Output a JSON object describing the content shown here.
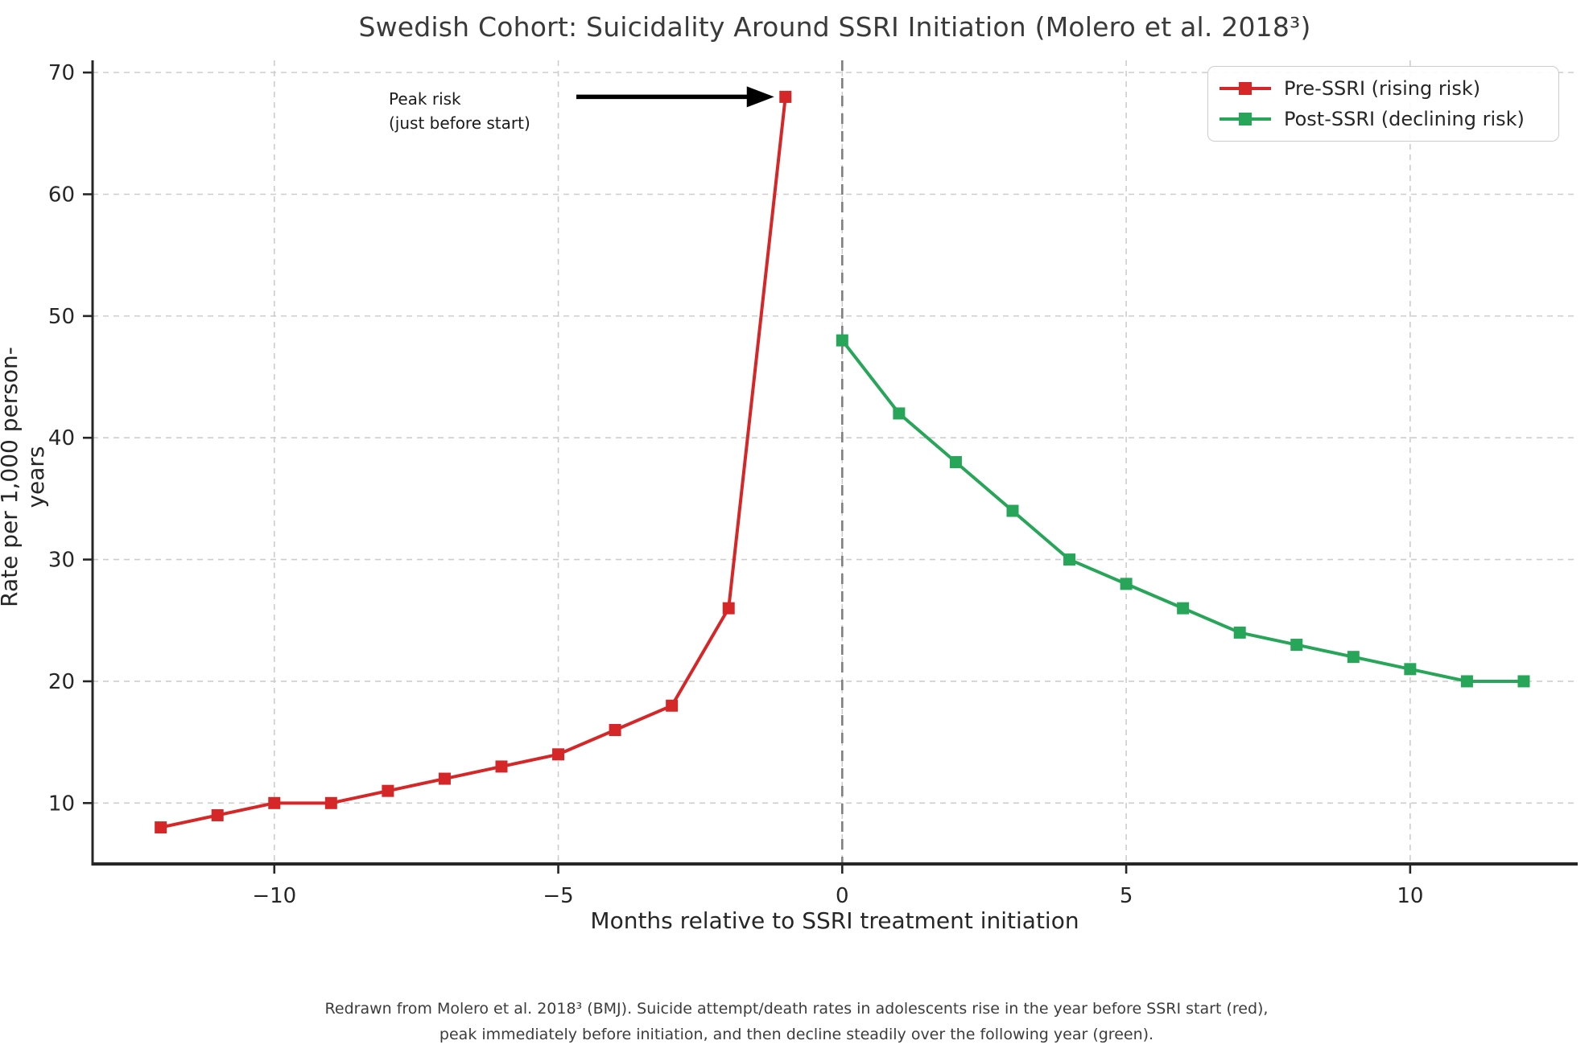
{
  "figure": {
    "title": "Swedish Cohort: Suicidality Around SSRI Initiation (Molero et al. 2018³)",
    "caption_line1": "Redrawn from Molero et al. 2018³ (BMJ). Suicide attempt/death rates in adolescents rise in the year before SSRI start (red),",
    "caption_line2": "peak immediately before initiation, and then decline steadily over the following year (green)."
  },
  "chart_data": {
    "type": "line",
    "title": "Swedish Cohort: Suicidality Around SSRI Initiation (Molero et al. 2018³)",
    "xlabel": "Months relative to SSRI treatment initiation",
    "ylabel": "Rate per 1,000 person-years",
    "xlim": [
      -13.2,
      12.95
    ],
    "ylim": [
      5,
      71
    ],
    "grid": true,
    "grid_style": "dashed",
    "legend_position": "upper right",
    "xticks": {
      "values": [
        -10,
        -5,
        0,
        5,
        10
      ],
      "labels": [
        "−10",
        "−5",
        "0",
        "5",
        "10"
      ]
    },
    "yticks": {
      "values": [
        10,
        20,
        30,
        40,
        50,
        60,
        70
      ],
      "labels": [
        "10",
        "20",
        "30",
        "40",
        "50",
        "60",
        "70"
      ]
    },
    "vline": {
      "x": 0,
      "color": "#7f7f7f",
      "style": "dashed"
    },
    "series": [
      {
        "name": "Pre-SSRI (rising risk)",
        "slug": "pre-ssri",
        "color": "#d62728",
        "marker": "square",
        "x": [
          -12,
          -11,
          -10,
          -9,
          -8,
          -7,
          -6,
          -5,
          -4,
          -3,
          -2,
          -1
        ],
        "y": [
          8,
          9,
          10,
          10,
          11,
          12,
          13,
          14,
          16,
          18,
          26,
          68
        ]
      },
      {
        "name": "Post-SSRI (declining risk)",
        "slug": "post-ssri",
        "color": "#27a558",
        "marker": "square",
        "x": [
          0,
          1,
          2,
          3,
          4,
          5,
          6,
          7,
          8,
          9,
          10,
          11,
          12
        ],
        "y": [
          48,
          42,
          38,
          34,
          30,
          28,
          26,
          24,
          23,
          22,
          21,
          20,
          20
        ]
      }
    ],
    "annotation": {
      "line1": "Peak risk",
      "line2": "(just before start)",
      "arrow_to": {
        "x": -1,
        "y": 68
      },
      "arrow_color": "#000000"
    }
  },
  "style_colors": {
    "gridline": "#cdcdcd",
    "spine": "#262626",
    "tick_label": "#262626",
    "background": "#ffffff"
  }
}
